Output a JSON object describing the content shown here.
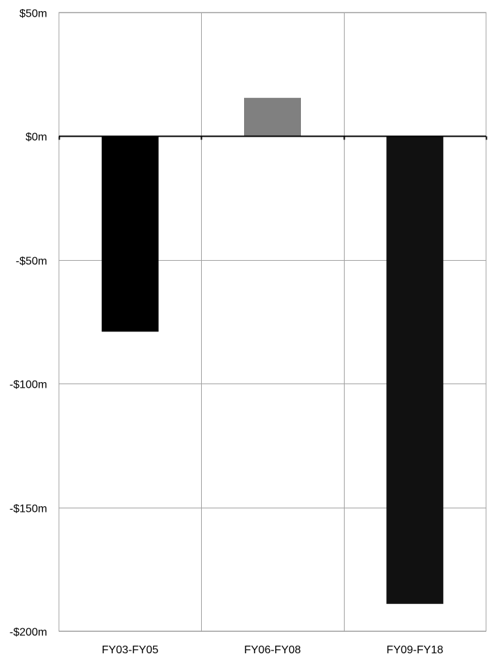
{
  "chart_data": {
    "type": "bar",
    "title": "",
    "xlabel": "",
    "ylabel": "",
    "categories": [
      "FY03-FY05",
      "FY06-FY08",
      "FY09-FY18"
    ],
    "values": [
      -79,
      15.5,
      -189
    ],
    "colors": [
      "#000000",
      "#808080",
      "#111111"
    ],
    "ylim": [
      -200,
      50
    ],
    "yticks": [
      50,
      0,
      -50,
      -100,
      -150,
      -200
    ],
    "ytick_labels": [
      "$50m",
      "$0m",
      "-$50m",
      "-$100m",
      "-$150m",
      "-$200m"
    ],
    "grid": true,
    "gridline_color": "#a0a0a0",
    "zero_line_color": "#000000"
  }
}
